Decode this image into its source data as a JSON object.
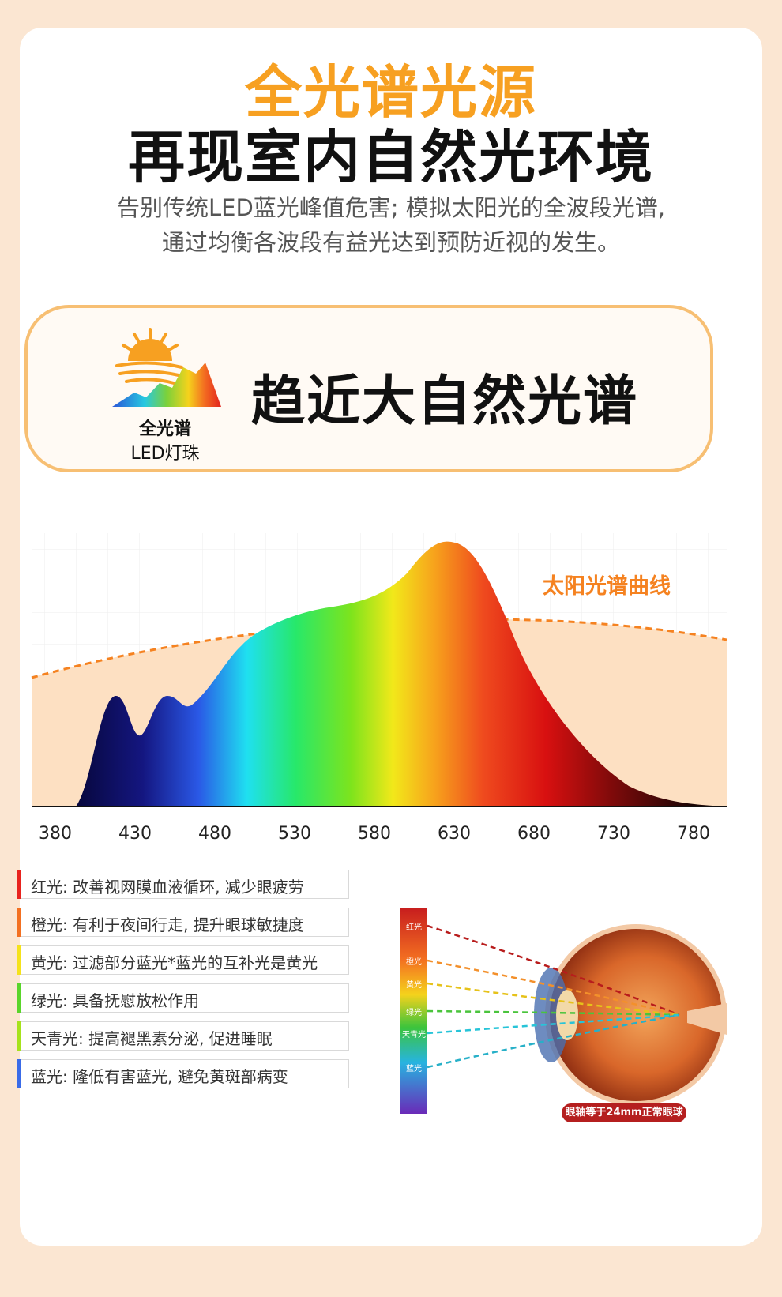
{
  "header": {
    "title_orange": "全光谱光源",
    "title_black": "再现室内自然光环境",
    "subtitle_line1": "告别传统LED蓝光峰值危害; 模拟太阳光的全波段光谱,",
    "subtitle_line2": "通过均衡各波段有益光达到预防近视的发生。"
  },
  "badge": {
    "icon": "sun-spectrum-icon",
    "label_bold": "全光谱",
    "label_regular": "LED灯珠",
    "heading": "趋近大自然光谱"
  },
  "spectrum": {
    "curve_label": "太阳光谱曲线",
    "ticks": [
      "380",
      "430",
      "480",
      "530",
      "580",
      "630",
      "680",
      "730",
      "780"
    ],
    "tick_values": [
      380,
      430,
      480,
      530,
      580,
      630,
      680,
      730,
      780
    ],
    "colors": {
      "curve": "#f58220",
      "fill": "#fde0c2"
    }
  },
  "benefits": [
    {
      "text": "红光: 改善视网膜血液循环, 减少眼疲劳",
      "color": "#e8231e"
    },
    {
      "text": "橙光: 有利于夜间行走, 提升眼球敏捷度",
      "color": "#f37021"
    },
    {
      "text": "黄光: 过滤部分蓝光*蓝光的互补光是黄光",
      "color": "#f5e21b"
    },
    {
      "text": "绿光: 具备抚慰放松作用",
      "color": "#5ad52b"
    },
    {
      "text": "天青光: 提高褪黑素分泌, 促进睡眠",
      "color": "#a6e21c"
    },
    {
      "text": "蓝光: 隆低有害蓝光, 避免黄斑部病变",
      "color": "#3a6be8"
    }
  ],
  "eye": {
    "bands": [
      "红光",
      "橙光",
      "黄光",
      "绿光",
      "天青光",
      "蓝光"
    ],
    "caption": "眼轴等于24mm正常眼球"
  }
}
